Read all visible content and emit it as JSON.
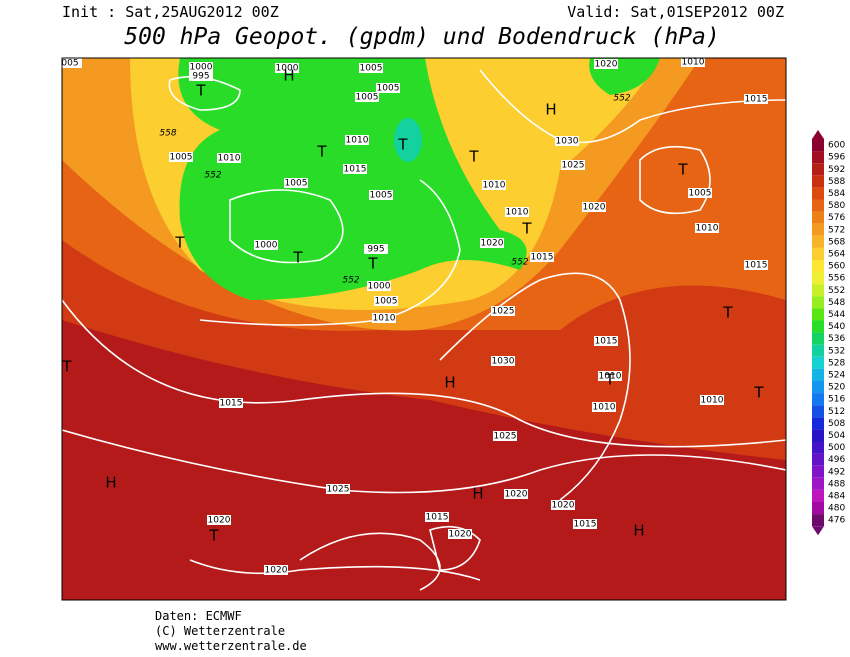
{
  "header": {
    "init": "Init : Sat,25AUG2012 00Z",
    "valid": "Valid: Sat,01SEP2012 00Z",
    "title": "500 hPa Geopot. (gpdm) und Bodendruck (hPa)"
  },
  "map": {
    "isobar_labels": [
      "1000",
      "995",
      "1000",
      "1005",
      "1005",
      "1005",
      "1010",
      "1015",
      "1005",
      "1010",
      "1005",
      "1005",
      "1000",
      "995",
      "1000",
      "1005",
      "1010",
      "1030",
      "1025",
      "1010",
      "1010",
      "1020",
      "1020",
      "1015",
      "1005",
      "1010",
      "1015",
      "1015",
      "1025",
      "1015",
      "1030",
      "1010",
      "1010",
      "1010",
      "1015",
      "1025",
      "1025",
      "1020",
      "1020",
      "1015",
      "1015",
      "1020",
      "1020",
      "1020",
      "1010",
      "1020",
      "005"
    ],
    "thickness_labels": [
      "558",
      "552",
      "552",
      "552",
      "552"
    ],
    "centers": [
      "T",
      "H",
      "T",
      "T",
      "T",
      "T",
      "T",
      "T",
      "T",
      "H",
      "T",
      "T",
      "T",
      "H",
      "T",
      "T",
      "H",
      "H",
      "T",
      "H"
    ]
  },
  "legend": {
    "levels": [
      600,
      596,
      592,
      588,
      584,
      580,
      576,
      572,
      568,
      564,
      560,
      556,
      552,
      548,
      544,
      540,
      536,
      532,
      528,
      524,
      520,
      516,
      512,
      508,
      504,
      500,
      496,
      492,
      488,
      484,
      480,
      476
    ],
    "colors": [
      "#8c0030",
      "#a01020",
      "#b42018",
      "#c83010",
      "#dc4a10",
      "#e66414",
      "#ee8018",
      "#f49a20",
      "#f8b428",
      "#fcce30",
      "#fce632",
      "#f0f032",
      "#c8f028",
      "#96ee1e",
      "#5ae614",
      "#28dc28",
      "#14d264",
      "#14d2a0",
      "#14d2d2",
      "#14b4e6",
      "#1496f0",
      "#1478f0",
      "#1450e6",
      "#1428dc",
      "#2814c8",
      "#4614c8",
      "#6414c8",
      "#8214c8",
      "#a014c8",
      "#be14be",
      "#a00aa0",
      "#6e0a6e"
    ]
  },
  "footer": {
    "source": "Daten: ECMWF",
    "copyright": "(C) Wetterzentrale",
    "url": "www.wetterzentrale.de"
  }
}
